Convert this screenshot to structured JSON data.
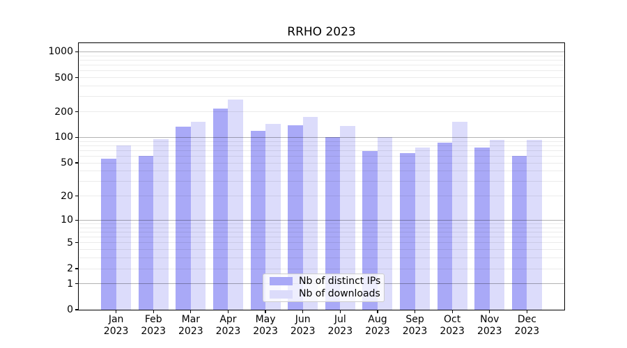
{
  "chart_data": {
    "type": "bar",
    "title": "RRHO 2023",
    "categories": [
      "Jan",
      "Feb",
      "Mar",
      "Apr",
      "May",
      "Jun",
      "Jul",
      "Aug",
      "Sep",
      "Oct",
      "Nov",
      "Dec"
    ],
    "year": "2023",
    "series": [
      {
        "name": "Nb of distinct IPs",
        "color": "#a9a9f7",
        "values": [
          56,
          61,
          133,
          219,
          120,
          139,
          100,
          69,
          65,
          87,
          76,
          61
        ]
      },
      {
        "name": "Nb of downloads",
        "color": "#dcdcfb",
        "values": [
          81,
          95,
          152,
          275,
          144,
          175,
          135,
          100,
          76,
          151,
          93,
          93
        ]
      }
    ],
    "yscale": "log10(value+1)",
    "ylim": [
      0,
      1260
    ],
    "yticks": [
      0,
      1,
      2,
      5,
      10,
      20,
      50,
      100,
      200,
      500,
      1000
    ],
    "major_grid_values": [
      1,
      10,
      100,
      1000
    ],
    "grid": "major+minor, drawn over bars",
    "legend_position": "lower center",
    "colors": {
      "major_grid": "rgba(0,0,0,0.30)",
      "minor_grid": "rgba(0,0,0,0.08)",
      "spine": "#000000",
      "background": "#ffffff"
    }
  }
}
